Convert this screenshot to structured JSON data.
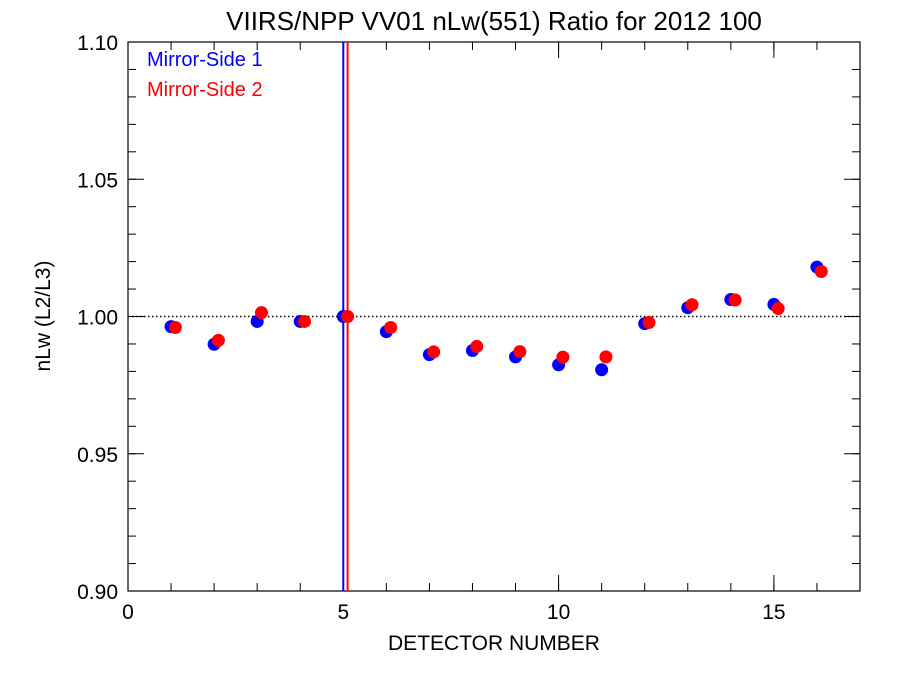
{
  "chart_data": {
    "type": "scatter",
    "title": "VIIRS/NPP VV01 nLw(551) Ratio for 2012 100",
    "xlabel": "DETECTOR NUMBER",
    "ylabel": "nLw (L2/L3)",
    "xlim": [
      0,
      17
    ],
    "ylim": [
      0.9,
      1.1
    ],
    "x_ticks": [
      {
        "value": 0,
        "label": "0"
      },
      {
        "value": 5,
        "label": "5"
      },
      {
        "value": 10,
        "label": "10"
      },
      {
        "value": 15,
        "label": "15"
      }
    ],
    "x_minor_step": 1,
    "y_ticks": [
      {
        "value": 0.9,
        "label": "0.90"
      },
      {
        "value": 0.95,
        "label": "0.95"
      },
      {
        "value": 1.0,
        "label": "1.00"
      },
      {
        "value": 1.05,
        "label": "1.05"
      },
      {
        "value": 1.1,
        "label": "1.10"
      }
    ],
    "y_minor_step": 0.01,
    "reference_line": {
      "y": 1.0,
      "style": "dotted",
      "color": "#000000"
    },
    "vertical_lines": [
      {
        "x": 5.0,
        "color": "#0000ff",
        "series": "Mirror-Side 1"
      },
      {
        "x": 5.1,
        "color": "#ff0000",
        "series": "Mirror-Side 2"
      }
    ],
    "legend_position": "top-left",
    "series": [
      {
        "name": "Mirror-Side 1",
        "color": "#0000ff",
        "x": [
          1,
          2,
          3,
          4,
          5,
          6,
          7,
          8,
          9,
          10,
          11,
          12,
          13,
          14,
          15,
          16
        ],
        "y": [
          0.9963,
          0.9899,
          0.9982,
          0.9982,
          1.0,
          0.9945,
          0.9861,
          0.9876,
          0.9853,
          0.9824,
          0.9806,
          0.9974,
          1.0032,
          1.0062,
          1.0044,
          1.018
        ]
      },
      {
        "name": "Mirror-Side 2",
        "color": "#ff0000",
        "x": [
          1.1,
          2.1,
          3.1,
          4.1,
          5.1,
          6.1,
          7.1,
          8.1,
          9.1,
          10.1,
          11.1,
          12.1,
          13.1,
          14.1,
          15.1,
          16.1
        ],
        "y": [
          0.996,
          0.9913,
          1.0014,
          0.9982,
          1.0,
          0.996,
          0.9871,
          0.9891,
          0.9872,
          0.9852,
          0.9853,
          0.9978,
          1.0043,
          1.006,
          1.0029,
          1.0164
        ]
      }
    ]
  }
}
